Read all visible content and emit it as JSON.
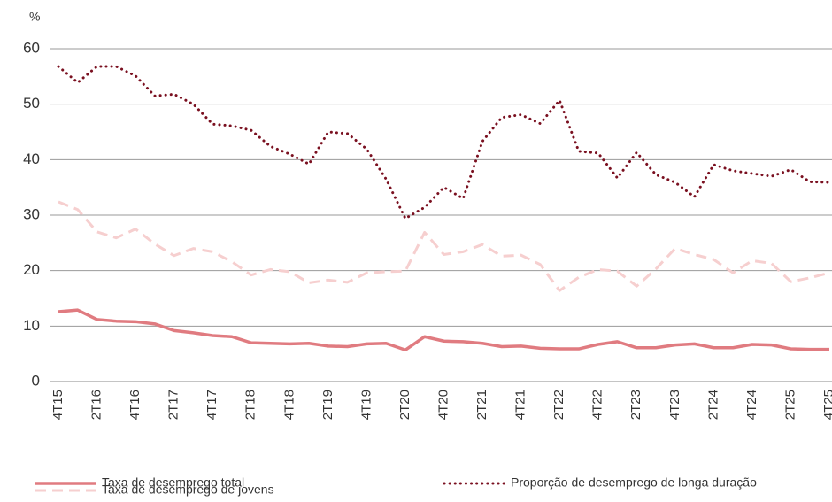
{
  "chart_data": {
    "type": "line",
    "ylabel": "%",
    "categories": [
      "4T15",
      null,
      "2T16",
      null,
      "4T16",
      null,
      "2T17",
      null,
      "4T17",
      null,
      "2T18",
      null,
      "4T18",
      null,
      "2T19",
      null,
      "4T19",
      null,
      "2T20",
      null,
      "4T20",
      null,
      "2T21",
      null,
      "4T21",
      null,
      "2T22",
      null,
      "4T22",
      null,
      "2T23",
      null,
      "4T23",
      null,
      "2T24",
      null,
      "4T24",
      null,
      "2T25",
      null,
      "4T25"
    ],
    "series": [
      {
        "name": "Taxa de desemprego total",
        "color": "#e07b80",
        "style": "solid",
        "values": [
          12.6,
          12.9,
          11.2,
          10.9,
          10.8,
          10.4,
          9.2,
          8.8,
          8.3,
          8.1,
          7.0,
          6.9,
          6.8,
          6.9,
          6.4,
          6.3,
          6.8,
          6.9,
          5.7,
          8.1,
          7.3,
          7.2,
          6.9,
          6.3,
          6.4,
          6.0,
          5.9,
          5.9,
          6.7,
          7.2,
          6.1,
          6.1,
          6.6,
          6.8,
          6.1,
          6.1,
          6.7,
          6.6,
          5.9,
          5.8,
          5.8
        ]
      },
      {
        "name": "Proporção de desemprego de longa duração",
        "color": "#7a1020",
        "style": "dotted",
        "values": [
          56.8,
          53.9,
          56.8,
          56.8,
          55.1,
          51.5,
          51.8,
          50.0,
          46.4,
          46.1,
          45.3,
          42.4,
          41.0,
          39.2,
          45.0,
          44.7,
          41.9,
          36.5,
          29.4,
          31.4,
          35.0,
          33.0,
          43.3,
          47.6,
          48.1,
          46.5,
          50.7,
          41.5,
          41.2,
          36.7,
          41.3,
          37.3,
          35.9,
          33.3,
          39.1,
          38.0,
          37.5,
          37.0,
          38.2,
          36.0,
          35.9
        ]
      },
      {
        "name": "Taxa de desemprego de jovens",
        "color": "#f6cfcf",
        "style": "dashed",
        "values": [
          32.4,
          31.0,
          27.0,
          25.9,
          27.5,
          24.8,
          22.7,
          24.0,
          23.4,
          21.6,
          19.2,
          20.2,
          19.8,
          17.8,
          18.3,
          17.9,
          19.6,
          19.8,
          19.9,
          26.9,
          22.9,
          23.4,
          24.7,
          22.6,
          22.8,
          21.1,
          16.4,
          18.8,
          20.2,
          19.9,
          17.2,
          20.3,
          24.0,
          22.9,
          22.0,
          19.6,
          21.8,
          21.3,
          18.0,
          18.7,
          19.6
        ]
      }
    ],
    "ylim": [
      0,
      60
    ],
    "yticks": [
      0,
      10,
      20,
      30,
      40,
      50,
      60
    ],
    "grid": true
  }
}
